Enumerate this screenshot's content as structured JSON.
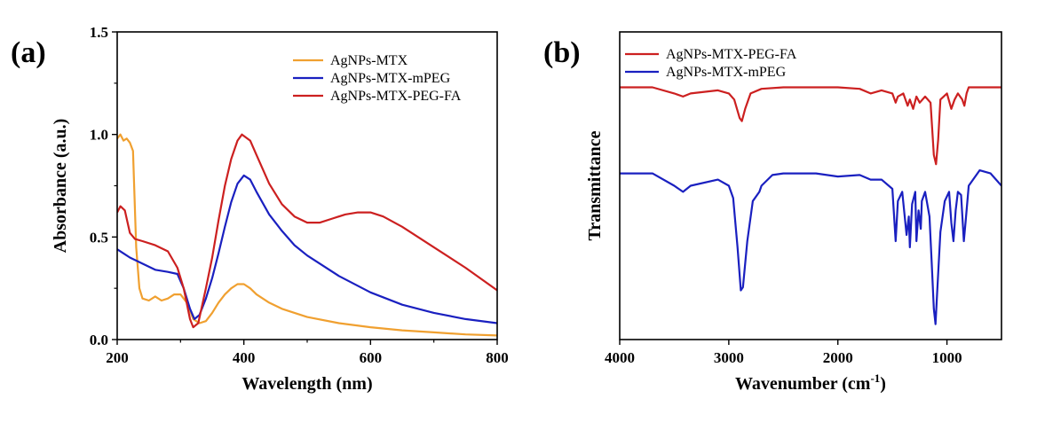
{
  "chart_data": [
    {
      "type": "line",
      "panel_label": "(a)",
      "xlabel": "Wavelength (nm)",
      "ylabel": "Absorbance (a.u.)",
      "xlim": [
        200,
        800
      ],
      "ylim": [
        0,
        1.5
      ],
      "xticks": [
        200,
        400,
        600,
        800
      ],
      "yticks": [
        0.0,
        0.5,
        1.0,
        1.5
      ],
      "ytick_labels": [
        "0.0",
        "0.5",
        "1.0",
        "1.5"
      ],
      "legend_position": "top-right",
      "series": [
        {
          "name": "AgNPs-MTX",
          "color": "#f0a030",
          "points": [
            [
              200,
              0.98
            ],
            [
              205,
              1.0
            ],
            [
              210,
              0.97
            ],
            [
              215,
              0.98
            ],
            [
              220,
              0.96
            ],
            [
              225,
              0.92
            ],
            [
              230,
              0.45
            ],
            [
              235,
              0.25
            ],
            [
              240,
              0.2
            ],
            [
              250,
              0.19
            ],
            [
              260,
              0.21
            ],
            [
              270,
              0.19
            ],
            [
              280,
              0.2
            ],
            [
              290,
              0.22
            ],
            [
              300,
              0.22
            ],
            [
              310,
              0.18
            ],
            [
              320,
              0.1
            ],
            [
              330,
              0.08
            ],
            [
              340,
              0.09
            ],
            [
              350,
              0.13
            ],
            [
              360,
              0.18
            ],
            [
              370,
              0.22
            ],
            [
              380,
              0.25
            ],
            [
              390,
              0.27
            ],
            [
              400,
              0.27
            ],
            [
              410,
              0.25
            ],
            [
              420,
              0.22
            ],
            [
              440,
              0.18
            ],
            [
              460,
              0.15
            ],
            [
              480,
              0.13
            ],
            [
              500,
              0.11
            ],
            [
              550,
              0.08
            ],
            [
              600,
              0.06
            ],
            [
              650,
              0.045
            ],
            [
              700,
              0.035
            ],
            [
              750,
              0.025
            ],
            [
              800,
              0.02
            ]
          ]
        },
        {
          "name": "AgNPs-MTX-mPEG",
          "color": "#1a20c0",
          "points": [
            [
              200,
              0.44
            ],
            [
              210,
              0.42
            ],
            [
              220,
              0.4
            ],
            [
              240,
              0.37
            ],
            [
              260,
              0.34
            ],
            [
              280,
              0.33
            ],
            [
              295,
              0.32
            ],
            [
              305,
              0.25
            ],
            [
              315,
              0.15
            ],
            [
              322,
              0.1
            ],
            [
              330,
              0.12
            ],
            [
              340,
              0.2
            ],
            [
              350,
              0.3
            ],
            [
              360,
              0.42
            ],
            [
              370,
              0.55
            ],
            [
              380,
              0.67
            ],
            [
              390,
              0.76
            ],
            [
              400,
              0.8
            ],
            [
              410,
              0.78
            ],
            [
              420,
              0.72
            ],
            [
              440,
              0.61
            ],
            [
              460,
              0.53
            ],
            [
              480,
              0.46
            ],
            [
              500,
              0.41
            ],
            [
              520,
              0.37
            ],
            [
              550,
              0.31
            ],
            [
              600,
              0.23
            ],
            [
              650,
              0.17
            ],
            [
              700,
              0.13
            ],
            [
              750,
              0.1
            ],
            [
              800,
              0.08
            ]
          ]
        },
        {
          "name": "AgNPs-MTX-PEG-FA",
          "color": "#cc2020",
          "points": [
            [
              200,
              0.62
            ],
            [
              205,
              0.65
            ],
            [
              212,
              0.63
            ],
            [
              220,
              0.52
            ],
            [
              228,
              0.49
            ],
            [
              240,
              0.48
            ],
            [
              260,
              0.46
            ],
            [
              280,
              0.43
            ],
            [
              295,
              0.35
            ],
            [
              305,
              0.25
            ],
            [
              315,
              0.1
            ],
            [
              320,
              0.06
            ],
            [
              328,
              0.08
            ],
            [
              340,
              0.25
            ],
            [
              350,
              0.4
            ],
            [
              360,
              0.58
            ],
            [
              370,
              0.75
            ],
            [
              380,
              0.88
            ],
            [
              390,
              0.97
            ],
            [
              397,
              1.0
            ],
            [
              410,
              0.97
            ],
            [
              420,
              0.9
            ],
            [
              440,
              0.76
            ],
            [
              460,
              0.66
            ],
            [
              480,
              0.6
            ],
            [
              500,
              0.57
            ],
            [
              520,
              0.57
            ],
            [
              540,
              0.59
            ],
            [
              560,
              0.61
            ],
            [
              580,
              0.62
            ],
            [
              600,
              0.62
            ],
            [
              620,
              0.6
            ],
            [
              650,
              0.55
            ],
            [
              700,
              0.45
            ],
            [
              750,
              0.35
            ],
            [
              800,
              0.24
            ]
          ]
        }
      ]
    },
    {
      "type": "line",
      "panel_label": "(b)",
      "xlabel": "Wavenumber (cm",
      "xlabel_superscript": "-1",
      "xlabel_close": ")",
      "ylabel": "Transmittance",
      "xlim": [
        4000,
        500
      ],
      "ylim": [
        0,
        1
      ],
      "xticks": [
        4000,
        3000,
        2000,
        1000
      ],
      "y_axis_ticks": false,
      "legend_position": "top-left",
      "series": [
        {
          "name": "AgNPs-MTX-PEG-FA",
          "color": "#cc2020",
          "points": [
            [
              4000,
              0.82
            ],
            [
              3700,
              0.82
            ],
            [
              3500,
              0.8
            ],
            [
              3420,
              0.79
            ],
            [
              3350,
              0.8
            ],
            [
              3100,
              0.81
            ],
            [
              3000,
              0.8
            ],
            [
              2950,
              0.78
            ],
            [
              2900,
              0.72
            ],
            [
              2880,
              0.71
            ],
            [
              2850,
              0.75
            ],
            [
              2800,
              0.8
            ],
            [
              2700,
              0.815
            ],
            [
              2500,
              0.82
            ],
            [
              2000,
              0.82
            ],
            [
              1800,
              0.815
            ],
            [
              1700,
              0.8
            ],
            [
              1600,
              0.81
            ],
            [
              1500,
              0.8
            ],
            [
              1470,
              0.77
            ],
            [
              1450,
              0.79
            ],
            [
              1400,
              0.8
            ],
            [
              1360,
              0.76
            ],
            [
              1340,
              0.78
            ],
            [
              1310,
              0.75
            ],
            [
              1280,
              0.79
            ],
            [
              1250,
              0.77
            ],
            [
              1200,
              0.79
            ],
            [
              1150,
              0.77
            ],
            [
              1120,
              0.6
            ],
            [
              1100,
              0.57
            ],
            [
              1080,
              0.65
            ],
            [
              1060,
              0.78
            ],
            [
              1000,
              0.8
            ],
            [
              960,
              0.75
            ],
            [
              930,
              0.78
            ],
            [
              900,
              0.8
            ],
            [
              860,
              0.78
            ],
            [
              840,
              0.76
            ],
            [
              820,
              0.8
            ],
            [
              800,
              0.82
            ],
            [
              700,
              0.82
            ],
            [
              600,
              0.82
            ],
            [
              500,
              0.82
            ]
          ]
        },
        {
          "name": "AgNPs-MTX-mPEG",
          "color": "#1a20c0",
          "points": [
            [
              4000,
              0.54
            ],
            [
              3700,
              0.54
            ],
            [
              3500,
              0.5
            ],
            [
              3420,
              0.48
            ],
            [
              3350,
              0.5
            ],
            [
              3100,
              0.52
            ],
            [
              3000,
              0.5
            ],
            [
              2960,
              0.46
            ],
            [
              2920,
              0.3
            ],
            [
              2890,
              0.16
            ],
            [
              2870,
              0.17
            ],
            [
              2830,
              0.32
            ],
            [
              2780,
              0.45
            ],
            [
              2720,
              0.48
            ],
            [
              2700,
              0.5
            ],
            [
              2600,
              0.535
            ],
            [
              2500,
              0.54
            ],
            [
              2200,
              0.54
            ],
            [
              2000,
              0.53
            ],
            [
              1800,
              0.535
            ],
            [
              1700,
              0.52
            ],
            [
              1600,
              0.52
            ],
            [
              1500,
              0.49
            ],
            [
              1470,
              0.32
            ],
            [
              1450,
              0.45
            ],
            [
              1410,
              0.48
            ],
            [
              1370,
              0.34
            ],
            [
              1350,
              0.4
            ],
            [
              1340,
              0.3
            ],
            [
              1320,
              0.44
            ],
            [
              1290,
              0.48
            ],
            [
              1280,
              0.32
            ],
            [
              1260,
              0.42
            ],
            [
              1240,
              0.36
            ],
            [
              1230,
              0.45
            ],
            [
              1200,
              0.48
            ],
            [
              1160,
              0.4
            ],
            [
              1140,
              0.25
            ],
            [
              1120,
              0.1
            ],
            [
              1105,
              0.05
            ],
            [
              1090,
              0.15
            ],
            [
              1060,
              0.35
            ],
            [
              1020,
              0.45
            ],
            [
              980,
              0.48
            ],
            [
              960,
              0.38
            ],
            [
              940,
              0.32
            ],
            [
              920,
              0.42
            ],
            [
              900,
              0.48
            ],
            [
              870,
              0.47
            ],
            [
              845,
              0.32
            ],
            [
              830,
              0.38
            ],
            [
              800,
              0.5
            ],
            [
              700,
              0.55
            ],
            [
              600,
              0.54
            ],
            [
              550,
              0.52
            ],
            [
              500,
              0.5
            ]
          ]
        }
      ]
    }
  ]
}
